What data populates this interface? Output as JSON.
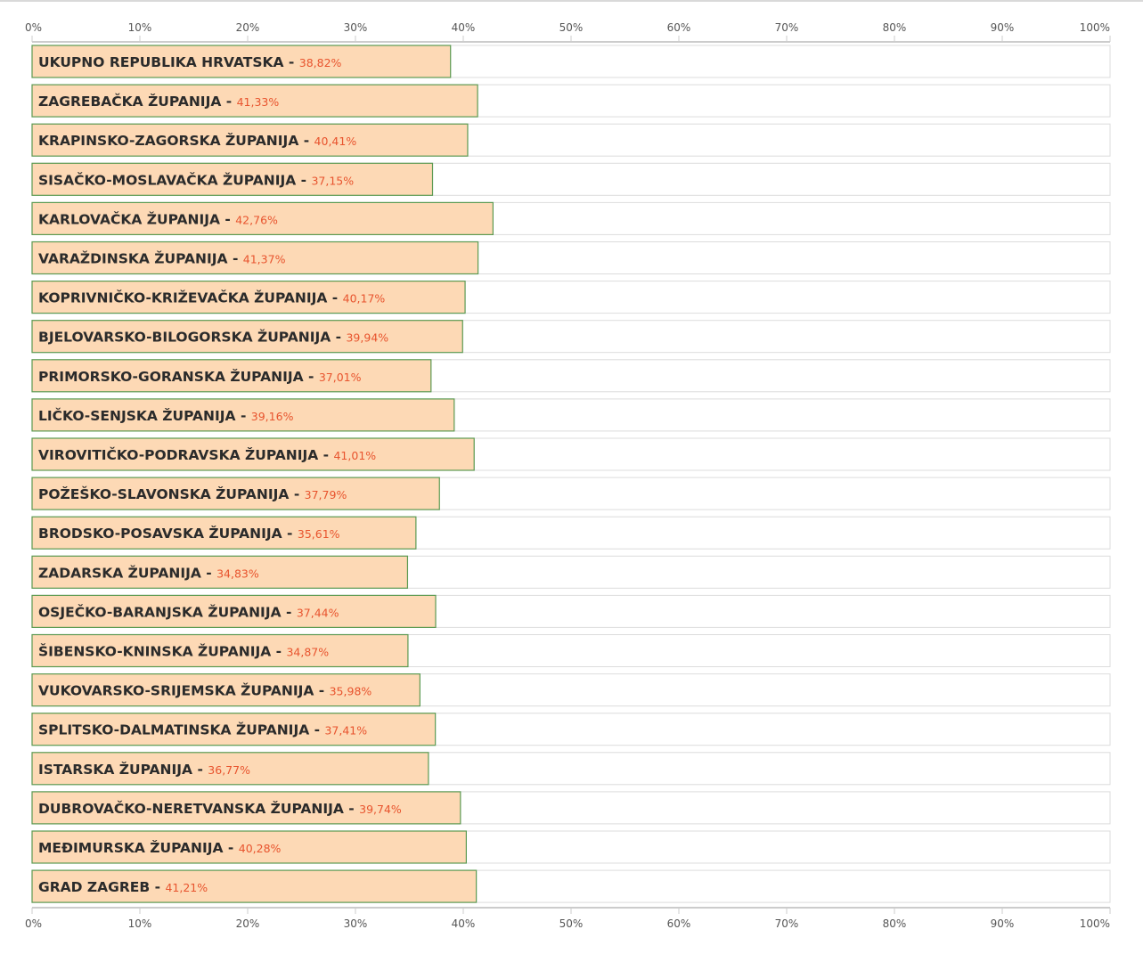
{
  "chart_data": {
    "type": "bar",
    "orientation": "horizontal",
    "xlim": [
      0,
      100
    ],
    "ticks": [
      "0%",
      "10%",
      "20%",
      "30%",
      "40%",
      "50%",
      "60%",
      "70%",
      "80%",
      "90%",
      "100%"
    ],
    "categories": [
      "UKUPNO REPUBLIKA HRVATSKA",
      "ZAGREBAČKA ŽUPANIJA",
      "KRAPINSKO-ZAGORSKA ŽUPANIJA",
      "SISAČKO-MOSLAVAČKA ŽUPANIJA",
      "KARLOVAČKA ŽUPANIJA",
      "VARAŽDINSKA ŽUPANIJA",
      "KOPRIVNIČKO-KRIŽEVAČKA ŽUPANIJA",
      "BJELOVARSKO-BILOGORSKA ŽUPANIJA",
      "PRIMORSKO-GORANSKA ŽUPANIJA",
      "LIČKO-SENJSKA ŽUPANIJA",
      "VIROVITIČKO-PODRAVSKA ŽUPANIJA",
      "POŽEŠKO-SLAVONSKA ŽUPANIJA",
      "BRODSKO-POSAVSKA ŽUPANIJA",
      "ZADARSKA ŽUPANIJA",
      "OSJEČKO-BARANJSKA ŽUPANIJA",
      "ŠIBENSKO-KNINSKA ŽUPANIJA",
      "VUKOVARSKO-SRIJEMSKA ŽUPANIJA",
      "SPLITSKO-DALMATINSKA ŽUPANIJA",
      "ISTARSKA ŽUPANIJA",
      "DUBROVAČKO-NERETVANSKA ŽUPANIJA",
      "MEĐIMURSKA ŽUPANIJA",
      "GRAD ZAGREB"
    ],
    "values": [
      38.82,
      41.33,
      40.41,
      37.15,
      42.76,
      41.37,
      40.17,
      39.94,
      37.01,
      39.16,
      41.01,
      37.79,
      35.61,
      34.83,
      37.44,
      34.87,
      35.98,
      37.41,
      36.77,
      39.74,
      40.28,
      41.21
    ],
    "value_labels": [
      "38,82%",
      "41,33%",
      "40,41%",
      "37,15%",
      "42,76%",
      "41,37%",
      "40,17%",
      "39,94%",
      "37,01%",
      "39,16%",
      "41,01%",
      "37,79%",
      "35,61%",
      "34,83%",
      "37,44%",
      "34,87%",
      "35,98%",
      "37,41%",
      "36,77%",
      "39,74%",
      "40,28%",
      "41,21%"
    ],
    "grid": false,
    "legend": "none",
    "colors": {
      "bar_fill": "#fdd9b5",
      "bar_stroke": "#5c9a52",
      "track_fill": "#ffffff",
      "track_stroke": "#dcdcdc",
      "label_text": "#2b2b2b",
      "value_text": "#e8542e",
      "axis": "#cccccc"
    }
  }
}
